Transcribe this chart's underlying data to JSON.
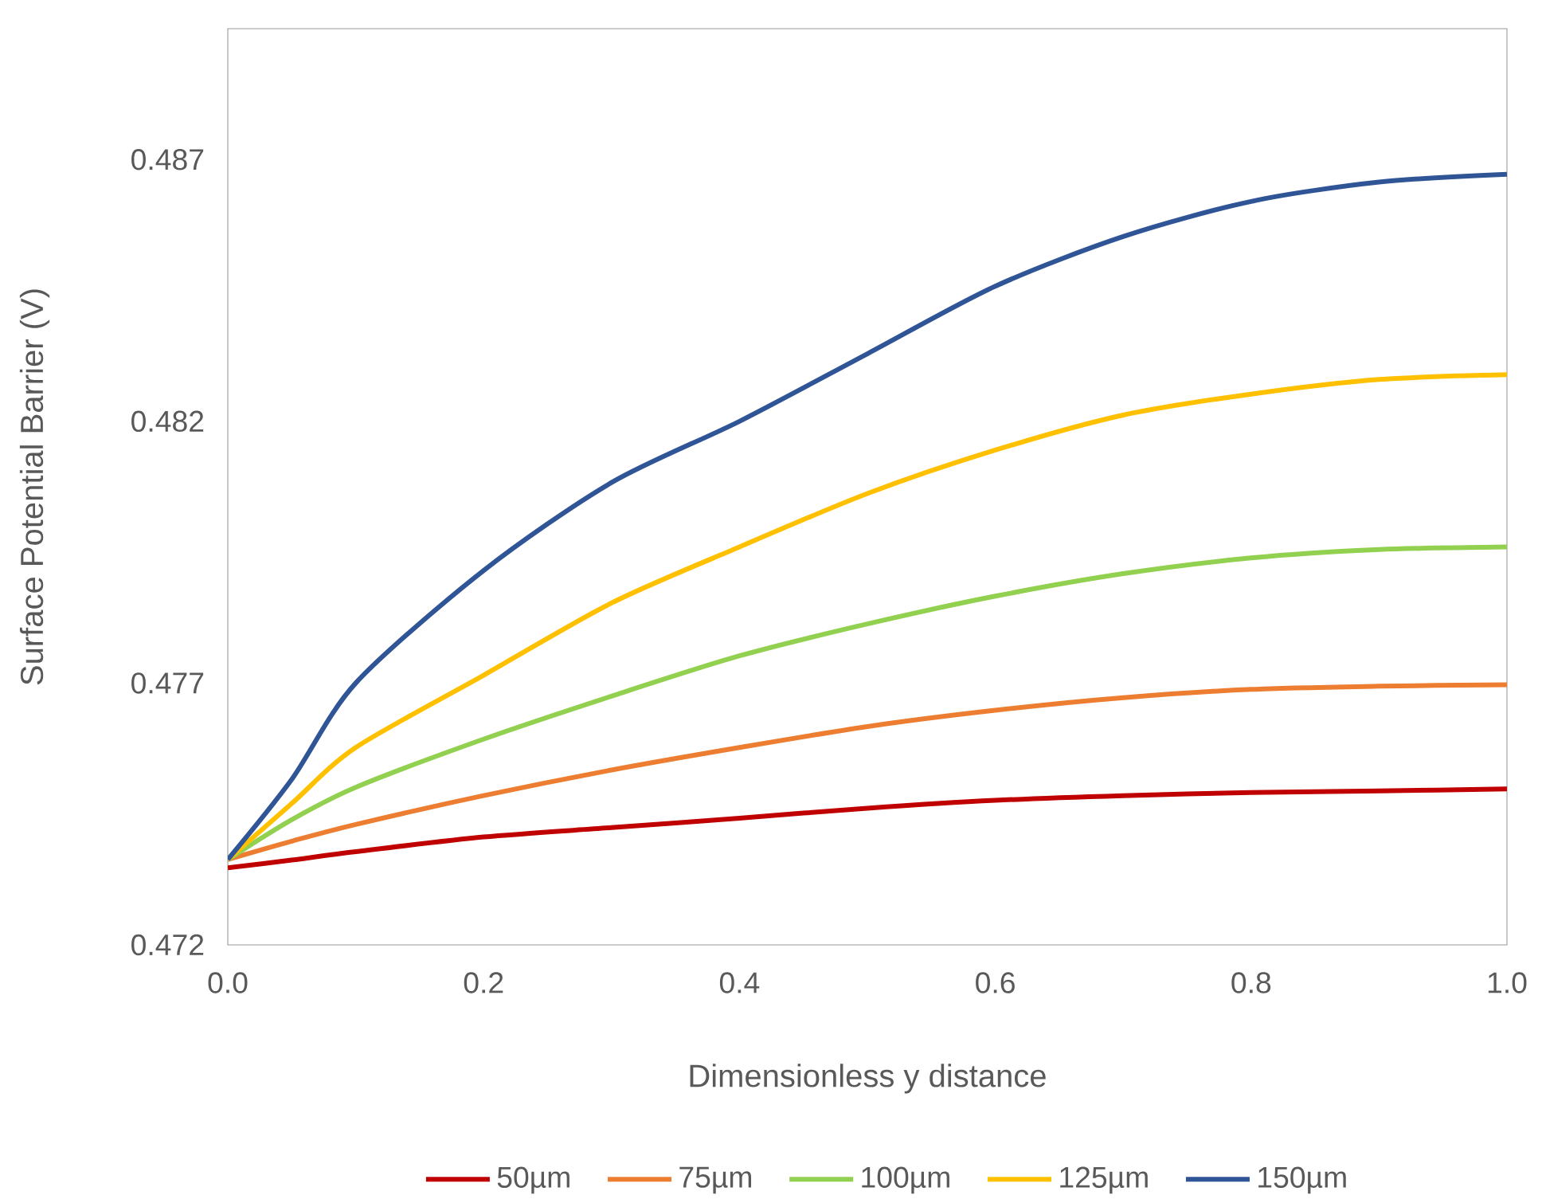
{
  "chart_data": {
    "type": "line",
    "xlabel": "Dimensionless  y distance",
    "ylabel": "Surface Potential Barrier (V)",
    "x": [
      0,
      0.05,
      0.1,
      0.2,
      0.3,
      0.4,
      0.5,
      0.6,
      0.7,
      0.8,
      0.9,
      1.0
    ],
    "series": [
      {
        "name": "50µm",
        "color": "#c00000",
        "values": [
          0.47347,
          0.47362,
          0.47378,
          0.47406,
          0.47424,
          0.47442,
          0.47461,
          0.47476,
          0.47485,
          0.47491,
          0.47494,
          0.47498
        ]
      },
      {
        "name": "75µm",
        "color": "#ed7d31",
        "values": [
          0.47363,
          0.47398,
          0.4743,
          0.47485,
          0.47534,
          0.47577,
          0.47617,
          0.47648,
          0.47672,
          0.47688,
          0.47694,
          0.47697
        ]
      },
      {
        "name": "100µm",
        "color": "#92d050",
        "values": [
          0.47363,
          0.47439,
          0.47501,
          0.47593,
          0.47675,
          0.47752,
          0.47813,
          0.47866,
          0.47909,
          0.47939,
          0.47955,
          0.4796
        ]
      },
      {
        "name": "125µm",
        "color": "#ffc000",
        "values": [
          0.47363,
          0.4747,
          0.47577,
          0.47715,
          0.47853,
          0.4796,
          0.48062,
          0.48145,
          0.48212,
          0.48252,
          0.4828,
          0.48289
        ]
      },
      {
        "name": "150µm",
        "color": "#2f5597",
        "values": [
          0.47363,
          0.47516,
          0.477,
          0.47915,
          0.48083,
          0.482,
          0.48329,
          0.48458,
          0.48553,
          0.4862,
          0.48657,
          0.48672
        ]
      }
    ],
    "xlim": [
      0,
      1.0
    ],
    "xticks": [
      {
        "value": 0,
        "label": "0.0"
      },
      {
        "value": 0.2,
        "label": "0.2"
      },
      {
        "value": 0.4,
        "label": "0.4"
      },
      {
        "value": 0.6,
        "label": "0.6"
      },
      {
        "value": 0.8,
        "label": "0.8"
      },
      {
        "value": 1.0,
        "label": "1.0"
      }
    ],
    "ylim": [
      0.472,
      0.4895
    ],
    "yticks": [
      {
        "value": 0.472,
        "label": "0.472"
      },
      {
        "value": 0.477,
        "label": "0.477"
      },
      {
        "value": 0.482,
        "label": "0.482"
      },
      {
        "value": 0.487,
        "label": "0.487"
      }
    ],
    "legend": "bottom",
    "marker": "none",
    "line_style": "solid",
    "grid": false
  }
}
